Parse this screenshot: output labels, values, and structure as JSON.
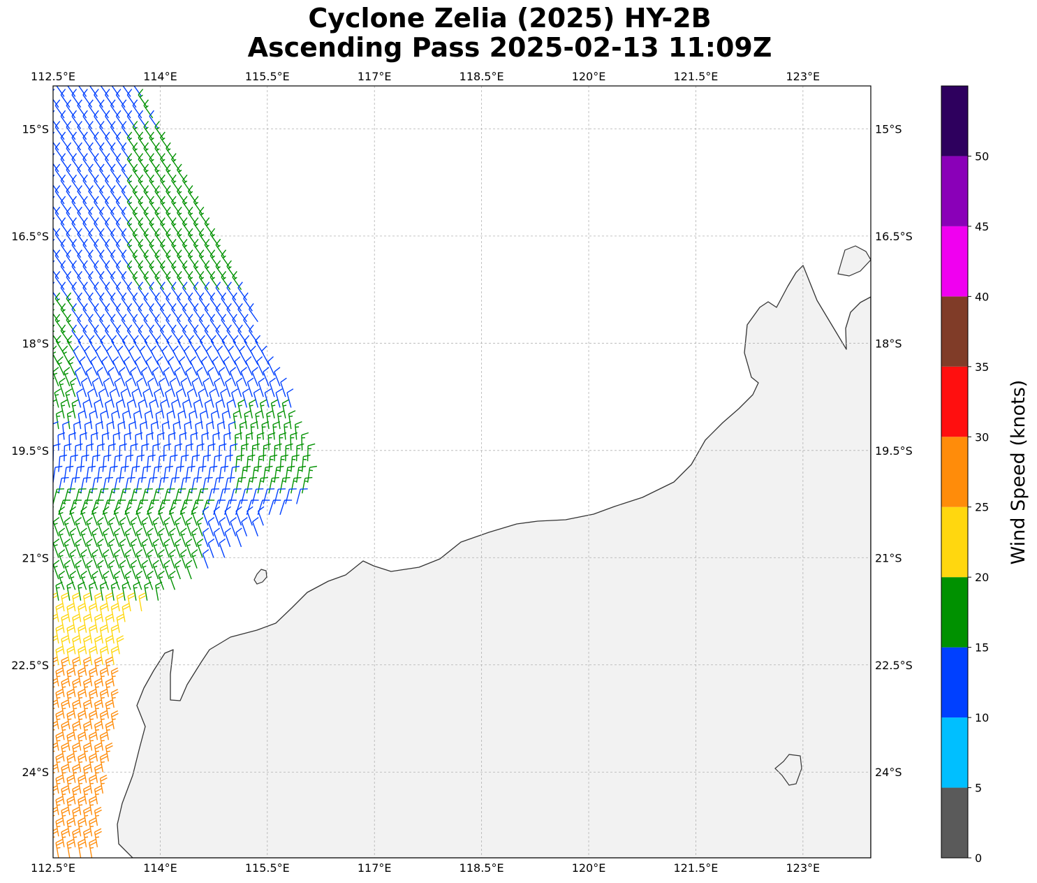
{
  "title_line1": "Cyclone Zelia (2025) HY-2B",
  "title_line2": "Ascending Pass 2025-02-13 11:09Z",
  "map": {
    "lon_range": [
      112.5,
      123.95
    ],
    "lat_range": [
      -25.2,
      -14.4
    ],
    "lon_ticks": [
      112.5,
      114,
      115.5,
      117,
      118.5,
      120,
      121.5,
      123
    ],
    "lon_labels": [
      "112.5°E",
      "114°E",
      "115.5°E",
      "117°E",
      "118.5°E",
      "120°E",
      "121.5°E",
      "123°E"
    ],
    "lat_ticks": [
      -15,
      -16.5,
      -18,
      -19.5,
      -21,
      -22.5,
      -24
    ],
    "lat_labels": [
      "15°S",
      "16.5°S",
      "18°S",
      "19.5°S",
      "21°S",
      "22.5°S",
      "24°S"
    ],
    "gridlines": true,
    "coastline_color": "#333333",
    "land_color": "#f2f2f2",
    "sea_color": "#ffffff"
  },
  "colorbar": {
    "label": "Wind Speed (knots)",
    "tick_values": [
      0,
      5,
      10,
      15,
      20,
      25,
      30,
      35,
      40,
      45,
      50
    ],
    "tick_labels": [
      "0",
      "5",
      "10",
      "15",
      "20",
      "25",
      "30",
      "35",
      "40",
      "45",
      "50"
    ],
    "bins": [
      {
        "from": 0,
        "to": 5,
        "color": "#5a5a5a"
      },
      {
        "from": 5,
        "to": 10,
        "color": "#00bfff"
      },
      {
        "from": 10,
        "to": 15,
        "color": "#0040ff"
      },
      {
        "from": 15,
        "to": 20,
        "color": "#009100"
      },
      {
        "from": 20,
        "to": 25,
        "color": "#ffd70f"
      },
      {
        "from": 25,
        "to": 30,
        "color": "#ff8c0a"
      },
      {
        "from": 30,
        "to": 35,
        "color": "#ff0f0f"
      },
      {
        "from": 35,
        "to": 40,
        "color": "#803c28"
      },
      {
        "from": 40,
        "to": 45,
        "color": "#f000f0"
      },
      {
        "from": 45,
        "to": 50,
        "color": "#8a00b8"
      },
      {
        "from": 50,
        "to": 55,
        "color": "#2e005e"
      }
    ]
  },
  "wind_swath": {
    "description_colors": "barb color by speed bin",
    "west_lon": 112.5,
    "north_lat": -14.4,
    "east_edge": [
      {
        "lat": -14.5,
        "lon": 113.85
      },
      {
        "lat": -16.0,
        "lon": 114.6
      },
      {
        "lat": -17.5,
        "lon": 115.3
      },
      {
        "lat": -18.5,
        "lon": 115.7
      },
      {
        "lat": -20.0,
        "lon": 116.2
      },
      {
        "lat": -20.9,
        "lon": 115.2
      },
      {
        "lat": -21.4,
        "lon": 114.4
      },
      {
        "lat": -21.9,
        "lon": 113.55
      },
      {
        "lat": -22.6,
        "lon": 113.4
      },
      {
        "lat": -23.5,
        "lon": 113.35
      },
      {
        "lat": -25.2,
        "lon": 113.1
      }
    ]
  }
}
